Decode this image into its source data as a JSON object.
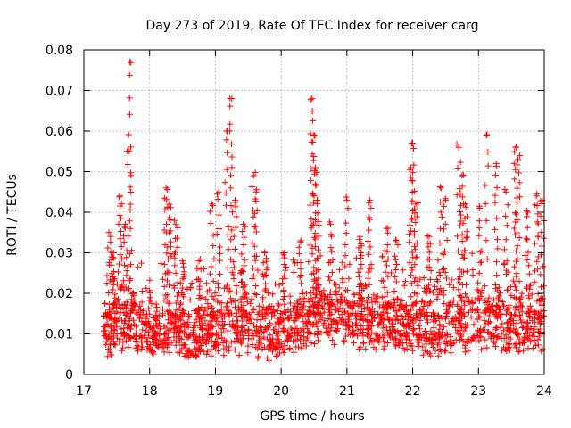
{
  "chart_data": {
    "type": "scatter",
    "title": "Day 273 of 2019, Rate Of TEC Index for receiver carg",
    "xlabel": "GPS time / hours",
    "ylabel": "ROTI / TECUs",
    "xlim": [
      17,
      24
    ],
    "ylim": [
      0,
      0.08
    ],
    "x_ticks": [
      17,
      18,
      19,
      20,
      21,
      22,
      23,
      24
    ],
    "y_ticks": [
      0,
      0.01,
      0.02,
      0.03,
      0.04,
      0.05,
      0.06,
      0.07,
      0.08
    ],
    "x_tick_labels": [
      "17",
      "18",
      "19",
      "20",
      "21",
      "22",
      "23",
      "24"
    ],
    "y_tick_labels": [
      "0",
      "0.01",
      "0.02",
      "0.03",
      "0.04",
      "0.05",
      "0.06",
      "0.07",
      "0.08"
    ],
    "grid": true,
    "marker": "+",
    "colors": {
      "marker": "#ff0000",
      "grid": "#a0a0a0",
      "axes": "#000000"
    },
    "series": [
      {
        "name": "ROTI",
        "x_range": [
          17.3,
          24.0
        ],
        "note": "approx. 2000 points, dense band 0.005-0.02, spikes listed below",
        "baseline_profile": [
          [
            17.3,
            0.011
          ],
          [
            17.6,
            0.013
          ],
          [
            18.0,
            0.01
          ],
          [
            18.3,
            0.012
          ],
          [
            18.6,
            0.009
          ],
          [
            19.0,
            0.011
          ],
          [
            19.4,
            0.012
          ],
          [
            19.8,
            0.01
          ],
          [
            20.2,
            0.012
          ],
          [
            20.6,
            0.015
          ],
          [
            21.0,
            0.014
          ],
          [
            21.4,
            0.013
          ],
          [
            21.8,
            0.012
          ],
          [
            22.2,
            0.011
          ],
          [
            22.6,
            0.012
          ],
          [
            23.0,
            0.013
          ],
          [
            23.4,
            0.012
          ],
          [
            23.8,
            0.012
          ],
          [
            24.0,
            0.011
          ]
        ],
        "peaks": [
          {
            "x": 17.38,
            "y": 0.035
          },
          {
            "x": 17.45,
            "y": 0.03
          },
          {
            "x": 17.55,
            "y": 0.044
          },
          {
            "x": 17.63,
            "y": 0.037
          },
          {
            "x": 17.7,
            "y": 0.077
          },
          {
            "x": 17.69,
            "y": 0.055
          },
          {
            "x": 17.75,
            "y": 0.02
          },
          {
            "x": 18.25,
            "y": 0.046
          },
          {
            "x": 18.3,
            "y": 0.042
          },
          {
            "x": 18.4,
            "y": 0.037
          },
          {
            "x": 18.5,
            "y": 0.028
          },
          {
            "x": 18.75,
            "y": 0.028
          },
          {
            "x": 18.95,
            "y": 0.042
          },
          {
            "x": 19.05,
            "y": 0.045
          },
          {
            "x": 19.17,
            "y": 0.06
          },
          {
            "x": 19.25,
            "y": 0.068
          },
          {
            "x": 19.3,
            "y": 0.043
          },
          {
            "x": 19.42,
            "y": 0.037
          },
          {
            "x": 19.58,
            "y": 0.049
          },
          {
            "x": 19.62,
            "y": 0.045
          },
          {
            "x": 19.75,
            "y": 0.03
          },
          {
            "x": 20.05,
            "y": 0.03
          },
          {
            "x": 20.3,
            "y": 0.033
          },
          {
            "x": 20.47,
            "y": 0.068
          },
          {
            "x": 20.5,
            "y": 0.059
          },
          {
            "x": 20.52,
            "y": 0.051
          },
          {
            "x": 20.55,
            "y": 0.043
          },
          {
            "x": 20.75,
            "y": 0.037
          },
          {
            "x": 21.0,
            "y": 0.043
          },
          {
            "x": 21.2,
            "y": 0.034
          },
          {
            "x": 21.35,
            "y": 0.043
          },
          {
            "x": 21.6,
            "y": 0.036
          },
          {
            "x": 21.75,
            "y": 0.033
          },
          {
            "x": 21.97,
            "y": 0.051
          },
          {
            "x": 22.0,
            "y": 0.057
          },
          {
            "x": 22.05,
            "y": 0.042
          },
          {
            "x": 22.25,
            "y": 0.034
          },
          {
            "x": 22.43,
            "y": 0.046
          },
          {
            "x": 22.5,
            "y": 0.043
          },
          {
            "x": 22.7,
            "y": 0.056
          },
          {
            "x": 22.75,
            "y": 0.049
          },
          {
            "x": 22.8,
            "y": 0.042
          },
          {
            "x": 23.02,
            "y": 0.041
          },
          {
            "x": 23.12,
            "y": 0.059
          },
          {
            "x": 23.27,
            "y": 0.052
          },
          {
            "x": 23.42,
            "y": 0.045
          },
          {
            "x": 23.57,
            "y": 0.056
          },
          {
            "x": 23.6,
            "y": 0.053
          },
          {
            "x": 23.75,
            "y": 0.04
          },
          {
            "x": 23.88,
            "y": 0.044
          },
          {
            "x": 23.97,
            "y": 0.043
          }
        ]
      }
    ]
  }
}
